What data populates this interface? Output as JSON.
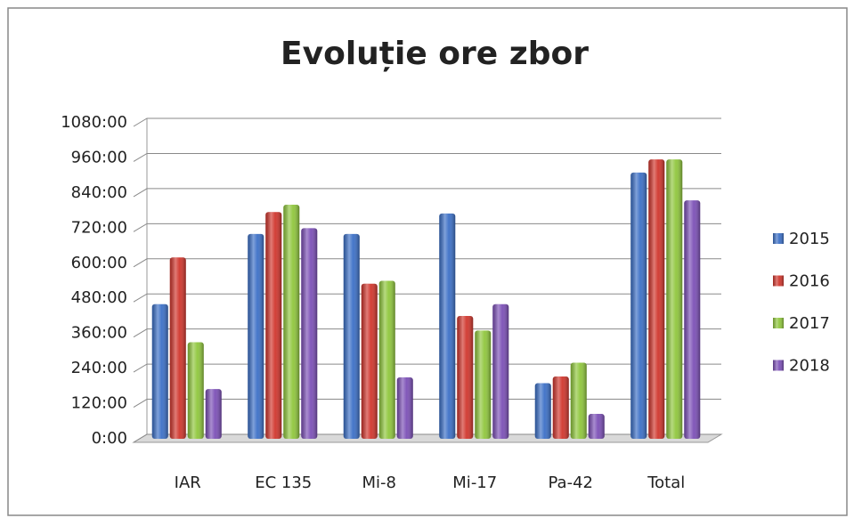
{
  "chart_data": {
    "type": "bar",
    "title": "Evoluție ore zbor",
    "categories": [
      "IAR",
      "EC 135",
      "Mi-8",
      "Mi-17",
      "Pa-42",
      "Total"
    ],
    "series": [
      {
        "name": "2015",
        "color": "#3b6fc6",
        "values": [
          460,
          700,
          700,
          770,
          190,
          910
        ]
      },
      {
        "name": "2016",
        "color": "#d0352c",
        "values": [
          620,
          775,
          530,
          420,
          213,
          955
        ]
      },
      {
        "name": "2017",
        "color": "#8fc63c",
        "values": [
          330,
          800,
          540,
          370,
          260,
          955
        ]
      },
      {
        "name": "2018",
        "color": "#7b4fb6",
        "values": [
          170,
          720,
          210,
          460,
          85,
          815
        ]
      }
    ],
    "ylim": [
      0,
      1080
    ],
    "yticks": [
      {
        "value": 0,
        "label": "0:00"
      },
      {
        "value": 120,
        "label": "120:00"
      },
      {
        "value": 240,
        "label": "240:00"
      },
      {
        "value": 360,
        "label": "360:00"
      },
      {
        "value": 480,
        "label": "480:00"
      },
      {
        "value": 600,
        "label": "600:00"
      },
      {
        "value": 720,
        "label": "720:00"
      },
      {
        "value": 840,
        "label": "840:00"
      },
      {
        "value": 960,
        "label": "960:00"
      },
      {
        "value": 1080,
        "label": "1080:00"
      }
    ],
    "grid": true,
    "legend": "right"
  }
}
